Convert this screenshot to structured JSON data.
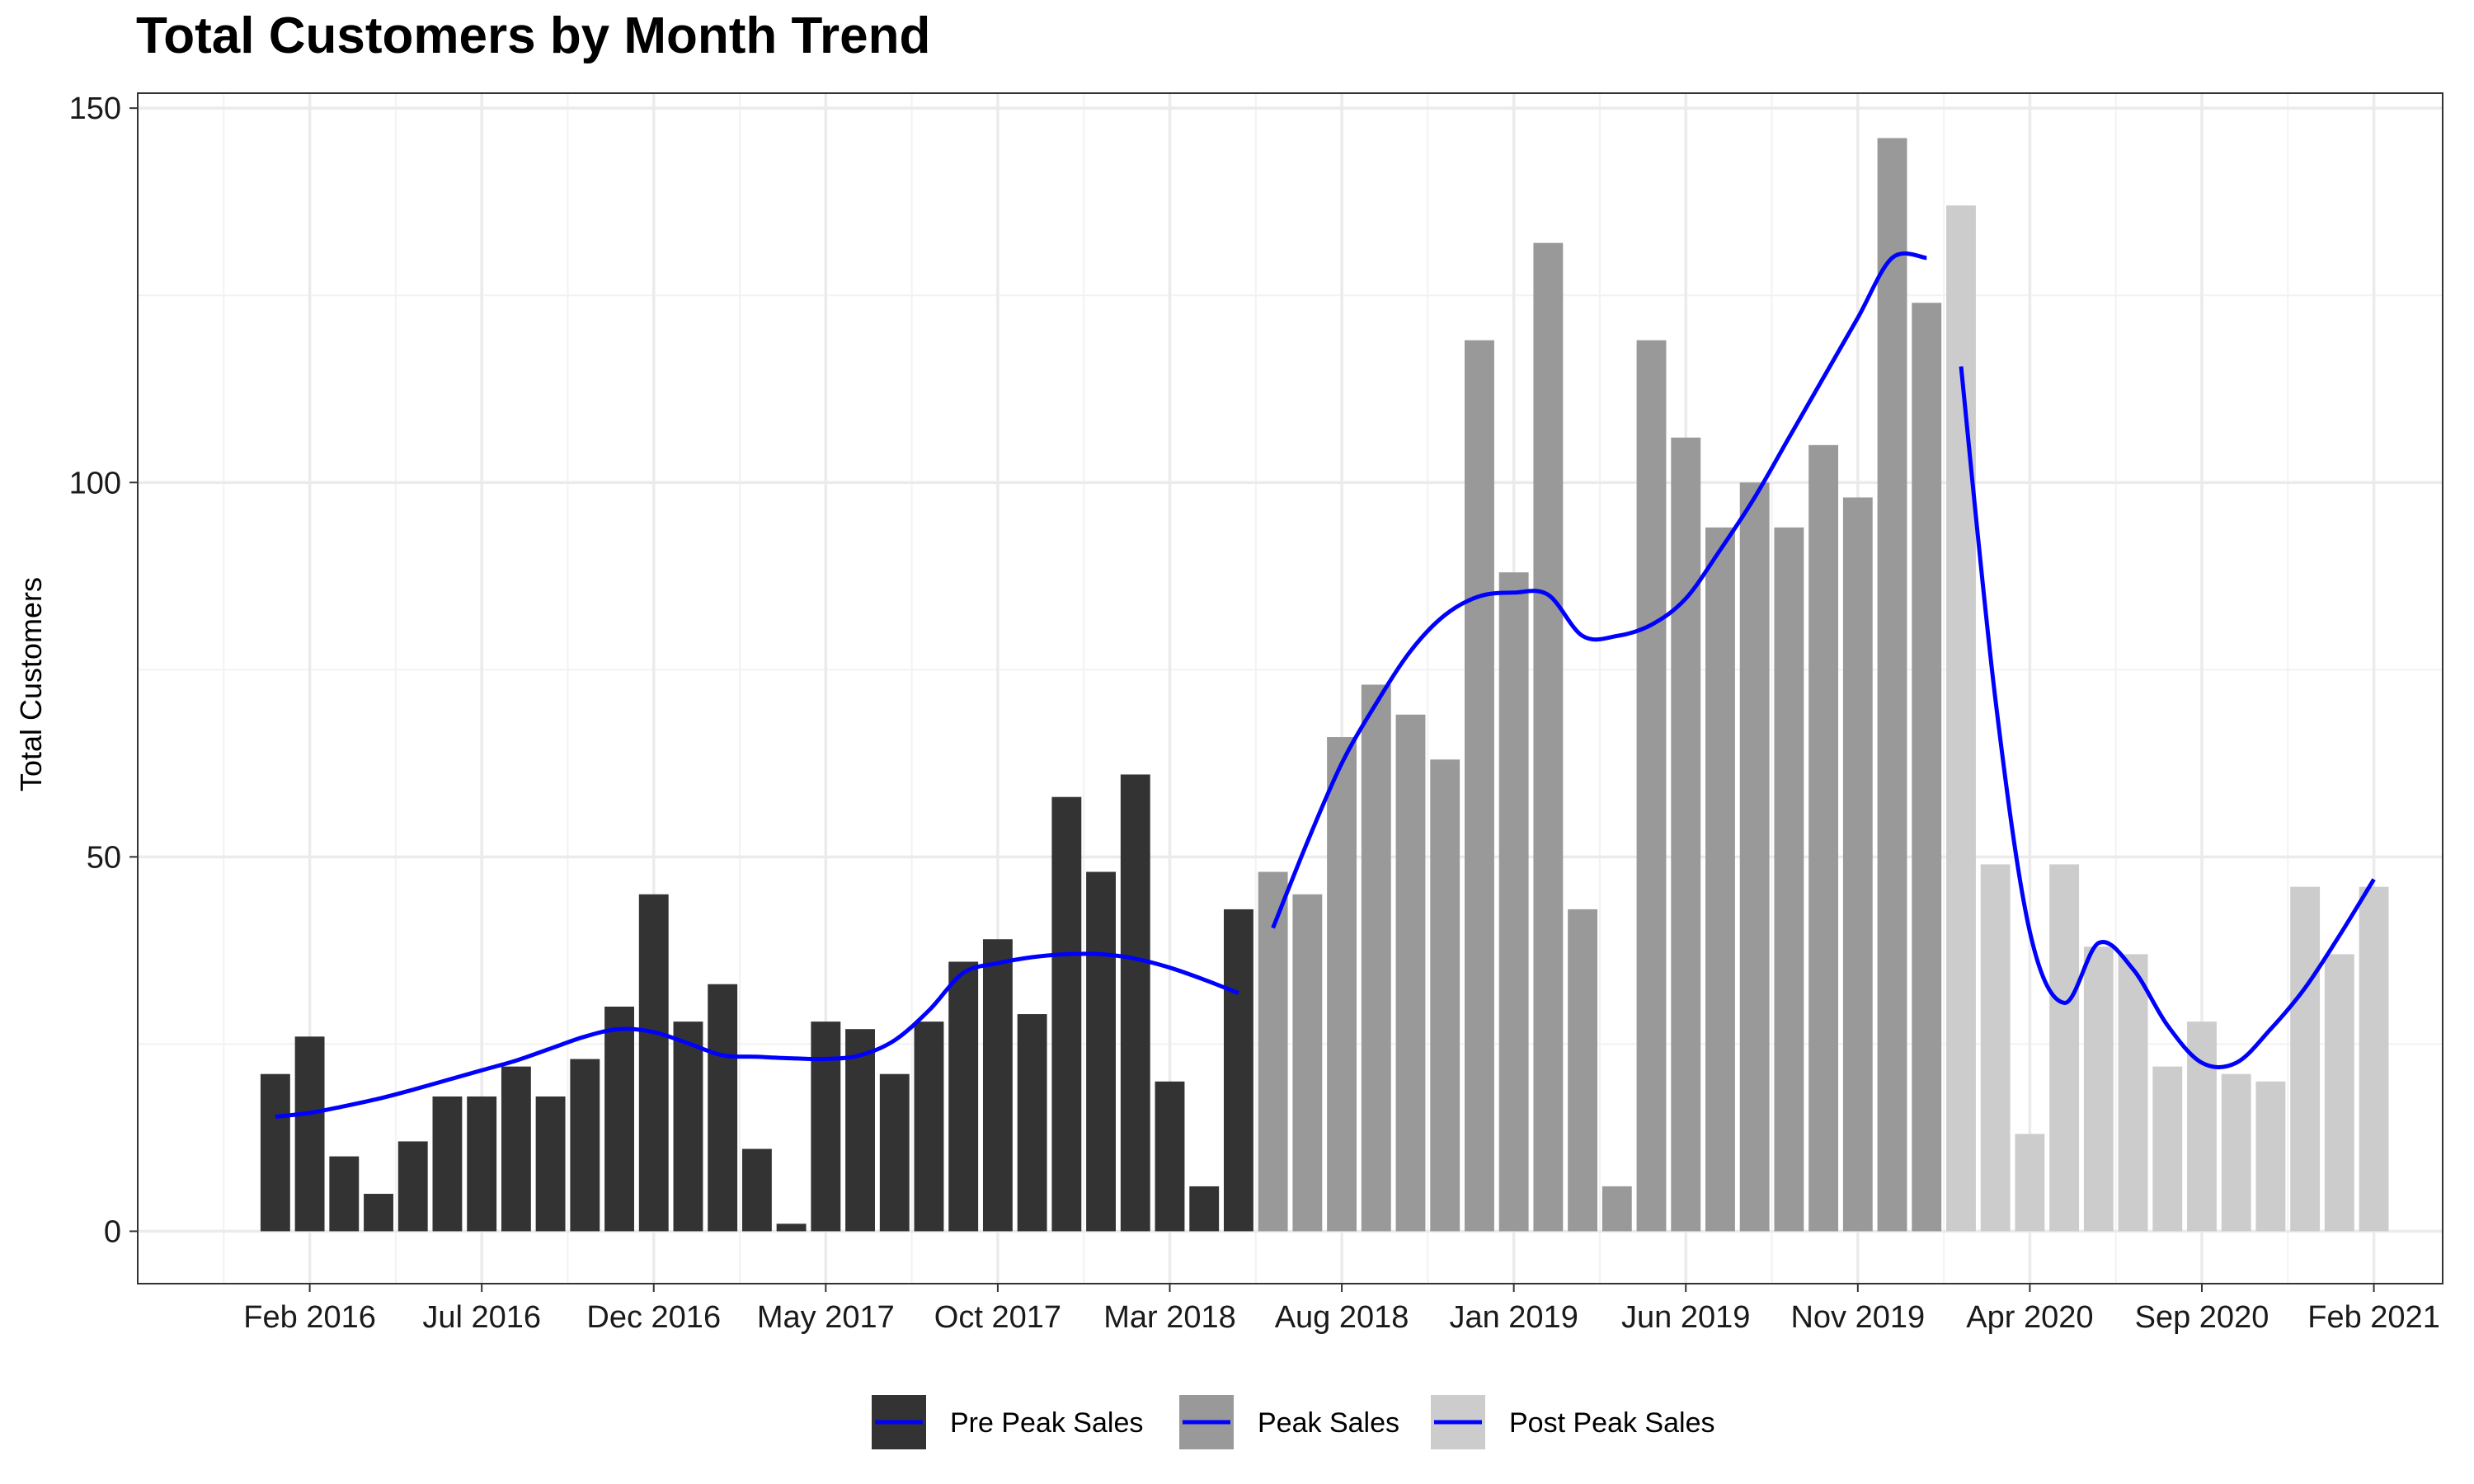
{
  "chart_data": {
    "type": "bar",
    "title": "Total Customers by Month Trend",
    "xlabel": "",
    "ylabel": "Total Customers",
    "ylim": [
      -7,
      152
    ],
    "y_ticks": [
      0,
      50,
      100,
      150
    ],
    "x_ticks": [
      {
        "label": "Feb 2016",
        "date": "2016-02"
      },
      {
        "label": "Jul 2016",
        "date": "2016-07"
      },
      {
        "label": "Dec 2016",
        "date": "2016-12"
      },
      {
        "label": "May 2017",
        "date": "2017-05"
      },
      {
        "label": "Oct 2017",
        "date": "2017-10"
      },
      {
        "label": "Mar 2018",
        "date": "2018-03"
      },
      {
        "label": "Aug 2018",
        "date": "2018-08"
      },
      {
        "label": "Jan 2019",
        "date": "2019-01"
      },
      {
        "label": "Jun 2019",
        "date": "2019-06"
      },
      {
        "label": "Nov 2019",
        "date": "2019-11"
      },
      {
        "label": "Apr 2020",
        "date": "2020-04"
      },
      {
        "label": "Sep 2020",
        "date": "2020-09"
      },
      {
        "label": "Feb 2021",
        "date": "2021-02"
      }
    ],
    "x_range": [
      "2015-09",
      "2021-04"
    ],
    "grid": true,
    "legend_position": "bottom",
    "trend_color": "#0000ff",
    "series": [
      {
        "name": "Pre Peak Sales",
        "color": "#333333",
        "start": "2016-01",
        "values": [
          21,
          26,
          10,
          5,
          12,
          18,
          18,
          22,
          18,
          23,
          30,
          45,
          28,
          33,
          11,
          1,
          28,
          27,
          21,
          28,
          36,
          39,
          29,
          58,
          48,
          61,
          20,
          6,
          43
        ],
        "trend": [
          15.3,
          15.8,
          16.7,
          17.7,
          18.9,
          20.2,
          21.5,
          22.8,
          24.4,
          26.0,
          27.0,
          26.6,
          25.1,
          23.5,
          23.3,
          23.1,
          23.0,
          23.5,
          25.5,
          29.5,
          34.5,
          35.8,
          36.6,
          37.0,
          37.0,
          36.4,
          35.2,
          33.6,
          31.8
        ]
      },
      {
        "name": "Peak Sales",
        "color": "#999999",
        "start": "2018-06",
        "values": [
          48,
          45,
          66,
          73,
          69,
          63,
          119,
          88,
          132,
          43,
          6,
          119,
          106,
          94,
          100,
          94,
          105,
          98,
          146,
          124
        ],
        "trend": [
          40.5,
          52.0,
          62.5,
          70.5,
          77.5,
          82.3,
          84.8,
          85.3,
          85.0,
          79.5,
          79.5,
          81.0,
          84.5,
          91.0,
          98.0,
          106.0,
          114.0,
          122.0,
          130.0,
          130.0
        ]
      },
      {
        "name": "Post Peak Sales",
        "color": "#cccccc",
        "start": "2020-02",
        "values": [
          137,
          49,
          13,
          49,
          38,
          37,
          22,
          28,
          21,
          20,
          46,
          37,
          46
        ],
        "trend": [
          115.5,
          71.0,
          40.0,
          30.5,
          38.5,
          35.0,
          27.5,
          22.5,
          22.5,
          27.0,
          32.5,
          39.5,
          47.0
        ]
      }
    ]
  }
}
